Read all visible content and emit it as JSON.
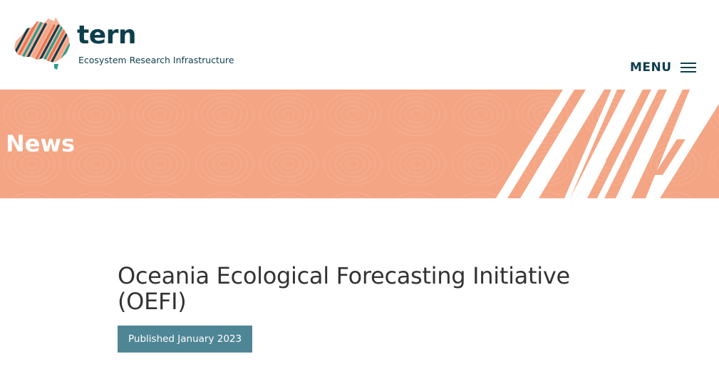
{
  "header": {
    "logo_word": "tern",
    "logo_subtitle": "Ecosystem Research Infrastructure",
    "menu_label": "MENU"
  },
  "banner": {
    "title": "News"
  },
  "article": {
    "title": "Oceania Ecological Forecasting Initiative (OEFI)",
    "published": "Published January 2023"
  },
  "colors": {
    "brand_dark": "#0e3e4c",
    "banner_orange": "#f4a584",
    "badge_teal": "#4f8696",
    "heading_text": "#333333"
  },
  "icons": {
    "logo": "tern-australia-map-logo",
    "menu": "hamburger-menu-icon"
  }
}
